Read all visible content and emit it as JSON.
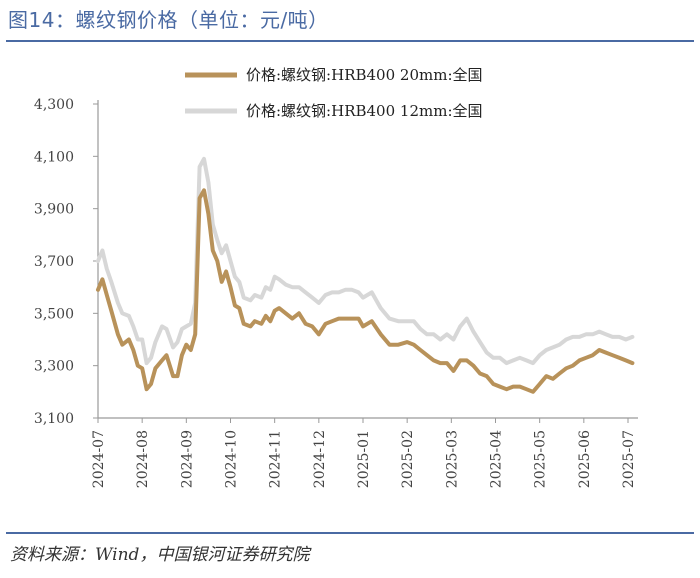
{
  "figure": {
    "title": "图14：螺纹钢价格（单位：元/吨）",
    "source": "资料来源：Wind，中国银河证券研究院"
  },
  "colors": {
    "series_20mm": "#b8925a",
    "series_12mm": "#d7d7d7",
    "title_blue": "#4a6aa3",
    "axis": "#9a9a9a"
  },
  "chart_data": {
    "type": "line",
    "title": "",
    "xlabel": "",
    "ylabel": "",
    "ylim": [
      3100,
      4300
    ],
    "yticks": [
      3100,
      3300,
      3500,
      3700,
      3900,
      4100,
      4300
    ],
    "ytick_labels": [
      "3,100",
      "3,300",
      "3,500",
      "3,700",
      "3,900",
      "4,100",
      "4,300"
    ],
    "xlim": [
      0,
      12
    ],
    "xticks": [
      0,
      1,
      2,
      3,
      4,
      5,
      6,
      7,
      8,
      9,
      10,
      11,
      12
    ],
    "xtick_labels": [
      "2024-07",
      "2024-08",
      "2024-09",
      "2024-10",
      "2024-11",
      "2024-12",
      "2025-01",
      "2025-02",
      "2025-03",
      "2025-04",
      "2025-05",
      "2025-06",
      "2025-07"
    ],
    "legend_position": "top",
    "series": [
      {
        "name": "价格:螺纹钢:HRB400 20mm:全国",
        "color": "#b8925a",
        "x": [
          0,
          0.1,
          0.2,
          0.3,
          0.45,
          0.55,
          0.7,
          0.8,
          0.9,
          1.0,
          1.1,
          1.2,
          1.3,
          1.45,
          1.55,
          1.7,
          1.8,
          1.9,
          2.0,
          2.1,
          2.2,
          2.3,
          2.4,
          2.5,
          2.6,
          2.7,
          2.8,
          2.9,
          3.0,
          3.1,
          3.2,
          3.3,
          3.45,
          3.55,
          3.7,
          3.8,
          3.9,
          4.0,
          4.1,
          4.25,
          4.4,
          4.55,
          4.7,
          4.85,
          5.0,
          5.15,
          5.3,
          5.45,
          5.6,
          5.75,
          5.9,
          6.0,
          6.2,
          6.4,
          6.6,
          6.8,
          7.0,
          7.15,
          7.3,
          7.45,
          7.6,
          7.75,
          7.9,
          8.05,
          8.2,
          8.35,
          8.5,
          8.65,
          8.8,
          8.95,
          9.1,
          9.25,
          9.4,
          9.55,
          9.7,
          9.85,
          10.0,
          10.15,
          10.3,
          10.45,
          10.6,
          10.75,
          10.9,
          11.05,
          11.2,
          11.35,
          11.5,
          11.65,
          11.8,
          11.95,
          12.1
        ],
        "values": [
          3590,
          3630,
          3570,
          3510,
          3420,
          3380,
          3400,
          3360,
          3300,
          3290,
          3210,
          3230,
          3290,
          3320,
          3340,
          3260,
          3260,
          3340,
          3380,
          3360,
          3420,
          3940,
          3970,
          3880,
          3740,
          3700,
          3620,
          3660,
          3600,
          3530,
          3520,
          3460,
          3450,
          3470,
          3460,
          3490,
          3470,
          3510,
          3520,
          3500,
          3480,
          3500,
          3460,
          3450,
          3420,
          3460,
          3470,
          3480,
          3480,
          3480,
          3480,
          3450,
          3470,
          3420,
          3380,
          3380,
          3390,
          3380,
          3360,
          3340,
          3320,
          3310,
          3310,
          3280,
          3320,
          3320,
          3300,
          3270,
          3260,
          3230,
          3220,
          3210,
          3220,
          3220,
          3210,
          3200,
          3230,
          3260,
          3250,
          3270,
          3290,
          3300,
          3320,
          3330,
          3340,
          3360,
          3350,
          3340,
          3330,
          3320,
          3310
        ]
      },
      {
        "name": "价格:螺纹钢:HRB400 12mm:全国",
        "color": "#d7d7d7",
        "x": [
          0,
          0.1,
          0.2,
          0.3,
          0.45,
          0.55,
          0.7,
          0.8,
          0.9,
          1.0,
          1.1,
          1.2,
          1.3,
          1.45,
          1.55,
          1.7,
          1.8,
          1.9,
          2.0,
          2.1,
          2.2,
          2.3,
          2.4,
          2.5,
          2.6,
          2.7,
          2.8,
          2.9,
          3.0,
          3.1,
          3.2,
          3.3,
          3.45,
          3.55,
          3.7,
          3.8,
          3.9,
          4.0,
          4.1,
          4.25,
          4.4,
          4.55,
          4.7,
          4.85,
          5.0,
          5.15,
          5.3,
          5.45,
          5.6,
          5.75,
          5.9,
          6.0,
          6.2,
          6.4,
          6.6,
          6.8,
          7.0,
          7.15,
          7.3,
          7.45,
          7.6,
          7.75,
          7.9,
          8.05,
          8.2,
          8.35,
          8.5,
          8.65,
          8.8,
          8.95,
          9.1,
          9.25,
          9.4,
          9.55,
          9.7,
          9.85,
          10.0,
          10.15,
          10.3,
          10.45,
          10.6,
          10.75,
          10.9,
          11.05,
          11.2,
          11.35,
          11.5,
          11.65,
          11.8,
          11.95,
          12.1
        ],
        "values": [
          3700,
          3740,
          3670,
          3620,
          3540,
          3500,
          3490,
          3450,
          3400,
          3400,
          3310,
          3330,
          3390,
          3450,
          3440,
          3370,
          3390,
          3440,
          3450,
          3460,
          3540,
          4060,
          4090,
          4000,
          3840,
          3780,
          3730,
          3760,
          3700,
          3640,
          3620,
          3560,
          3550,
          3570,
          3560,
          3600,
          3590,
          3640,
          3630,
          3610,
          3600,
          3600,
          3580,
          3560,
          3540,
          3570,
          3580,
          3580,
          3590,
          3590,
          3580,
          3560,
          3580,
          3520,
          3480,
          3470,
          3470,
          3470,
          3440,
          3420,
          3420,
          3400,
          3420,
          3400,
          3450,
          3480,
          3430,
          3390,
          3350,
          3330,
          3330,
          3310,
          3320,
          3330,
          3320,
          3310,
          3340,
          3360,
          3370,
          3380,
          3400,
          3410,
          3410,
          3420,
          3420,
          3430,
          3420,
          3410,
          3410,
          3400,
          3410
        ]
      }
    ]
  }
}
